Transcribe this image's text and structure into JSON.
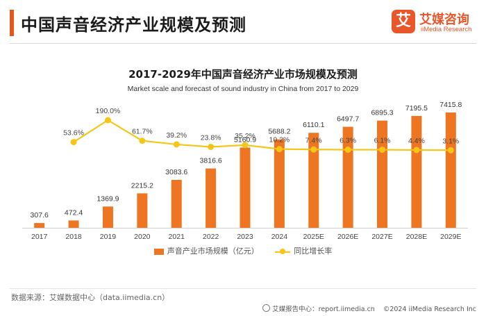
{
  "header": {
    "title": "中国声音经济产业规模及预测",
    "brand_badge": "艾",
    "brand_name": "艾媒咨询",
    "brand_sub": "iiMedia Research"
  },
  "chart_data": {
    "type": "bar",
    "title": "2017-2029年中国声音经济产业市场规模及预测",
    "subtitle": "Market scale and forecast of sound industry in China from 2017 to 2029",
    "categories": [
      "2017",
      "2018",
      "2019",
      "2020",
      "2021",
      "2022",
      "2023",
      "2024",
      "2025E",
      "2026E",
      "2027E",
      "2028E",
      "2029E"
    ],
    "series": [
      {
        "name": "声音产业市场规模（亿元）",
        "type": "bar",
        "values": [
          307.6,
          472.4,
          1369.9,
          2215.2,
          3083.6,
          3816.6,
          5160.9,
          5688.2,
          6110.1,
          6497.7,
          6895.3,
          7195.5,
          7415.8
        ],
        "labels": [
          "307.6",
          "472.4",
          "1369.9",
          "2215.2",
          "3083.6",
          "3816.6",
          "5160.9",
          "5688.2",
          "6110.1",
          "6497.7",
          "6895.3",
          "7195.5",
          "7415.8"
        ]
      },
      {
        "name": "同比增长率",
        "type": "line",
        "values": [
          null,
          53.6,
          190.0,
          61.7,
          39.2,
          23.8,
          35.2,
          10.2,
          7.4,
          6.3,
          6.1,
          4.4,
          3.1
        ],
        "labels": [
          "",
          "53.6%",
          "190.0%",
          "61.7%",
          "39.2%",
          "23.8%",
          "35.2%",
          "10.2%",
          "7.4%",
          "6.3%",
          "6.1%",
          "4.4%",
          "3.1%"
        ]
      }
    ],
    "colors": {
      "bar": "#ee7522",
      "line": "#f5c518"
    },
    "legend": "bottom-center",
    "grid": false
  },
  "legend": {
    "bar_label": "声音产业市场规模（亿元）",
    "line_label": "同比增长率"
  },
  "footer": {
    "source": "数据来源：艾媒数据中心（data.iimedia.cn）",
    "report_center": "艾媒报告中心：report.iimedia.cn",
    "copyright": "©2024  iiMedia Research  Inc"
  }
}
